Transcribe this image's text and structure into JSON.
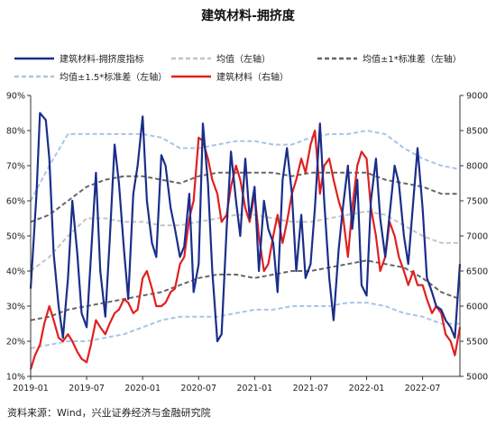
{
  "chart_data": {
    "type": "line",
    "title": "建筑材料-拥挤度",
    "source": "资料来源：Wind，兴业证券经济与金融研究院",
    "x_axis": {
      "ticks": [
        "2019-01",
        "2019-07",
        "2020-01",
        "2020-07",
        "2021-01",
        "2021-07",
        "2022-01",
        "2022-07"
      ],
      "range": [
        "2019-01",
        "2022-11"
      ]
    },
    "y_left": {
      "ticks": [
        "10%",
        "20%",
        "30%",
        "40%",
        "50%",
        "60%",
        "70%",
        "80%",
        "90%"
      ],
      "range": [
        0.1,
        0.9
      ]
    },
    "y_right": {
      "ticks": [
        "5000",
        "5500",
        "6000",
        "6500",
        "7000",
        "7500",
        "8000",
        "8500",
        "9000"
      ],
      "range": [
        5000,
        9000
      ]
    },
    "grid": false,
    "legend_position": "top",
    "series": [
      {
        "name": "建筑材料-拥挤度指标",
        "axis": "left",
        "color": "#1a2e8a",
        "style": "solid",
        "x": [
          "2019-01",
          "2019-01-20",
          "2019-02",
          "2019-02-20",
          "2019-03",
          "2019-03-15",
          "2019-04",
          "2019-04-15",
          "2019-05",
          "2019-05-15",
          "2019-06",
          "2019-06-15",
          "2019-07",
          "2019-07-15",
          "2019-08",
          "2019-08-15",
          "2019-09",
          "2019-09-15",
          "2019-10",
          "2019-10-15",
          "2019-11",
          "2019-11-15",
          "2019-12",
          "2019-12-15",
          "2020-01",
          "2020-01-15",
          "2020-02",
          "2020-02-15",
          "2020-03",
          "2020-03-15",
          "2020-04",
          "2020-04-15",
          "2020-05",
          "2020-05-15",
          "2020-06",
          "2020-06-15",
          "2020-07",
          "2020-07-15",
          "2020-08",
          "2020-08-15",
          "2020-09",
          "2020-09-15",
          "2020-10",
          "2020-10-15",
          "2020-11",
          "2020-11-15",
          "2020-12",
          "2020-12-15",
          "2021-01",
          "2021-01-15",
          "2021-02",
          "2021-02-15",
          "2021-03",
          "2021-03-15",
          "2021-04",
          "2021-04-15",
          "2021-05",
          "2021-05-15",
          "2021-06",
          "2021-06-15",
          "2021-07",
          "2021-07-15",
          "2021-08",
          "2021-08-15",
          "2021-09",
          "2021-09-15",
          "2021-10",
          "2021-10-15",
          "2021-11",
          "2021-11-15",
          "2021-12",
          "2021-12-15",
          "2022-01",
          "2022-01-15",
          "2022-02",
          "2022-02-15",
          "2022-03",
          "2022-03-15",
          "2022-04",
          "2022-04-15",
          "2022-05",
          "2022-05-15",
          "2022-06",
          "2022-06-15",
          "2022-07",
          "2022-07-15",
          "2022-08",
          "2022-08-15",
          "2022-09",
          "2022-09-15",
          "2022-10",
          "2022-10-15",
          "2022-11"
        ],
        "values": [
          0.35,
          0.62,
          0.85,
          0.83,
          0.72,
          0.45,
          0.3,
          0.21,
          0.38,
          0.6,
          0.45,
          0.28,
          0.24,
          0.44,
          0.68,
          0.4,
          0.27,
          0.48,
          0.76,
          0.65,
          0.46,
          0.32,
          0.62,
          0.7,
          0.84,
          0.6,
          0.48,
          0.44,
          0.73,
          0.7,
          0.58,
          0.52,
          0.44,
          0.47,
          0.62,
          0.34,
          0.42,
          0.82,
          0.65,
          0.4,
          0.2,
          0.22,
          0.52,
          0.74,
          0.6,
          0.5,
          0.72,
          0.55,
          0.64,
          0.4,
          0.6,
          0.52,
          0.48,
          0.34,
          0.66,
          0.75,
          0.62,
          0.4,
          0.56,
          0.38,
          0.42,
          0.58,
          0.82,
          0.6,
          0.38,
          0.26,
          0.46,
          0.58,
          0.7,
          0.52,
          0.66,
          0.36,
          0.33,
          0.6,
          0.72,
          0.55,
          0.44,
          0.56,
          0.7,
          0.65,
          0.5,
          0.42,
          0.6,
          0.75,
          0.58,
          0.38,
          0.34,
          0.3,
          0.29,
          0.26,
          0.24,
          0.21,
          0.42
        ]
      },
      {
        "name": "均值（左轴）",
        "axis": "left",
        "color": "#c4c4c4",
        "style": "dashed",
        "x": [
          "2019-01",
          "2019-03",
          "2019-05",
          "2019-07",
          "2019-09",
          "2019-11",
          "2020-01",
          "2020-03",
          "2020-05",
          "2020-07",
          "2020-09",
          "2020-11",
          "2021-01",
          "2021-03",
          "2021-05",
          "2021-07",
          "2021-09",
          "2021-11",
          "2022-01",
          "2022-03",
          "2022-05",
          "2022-07",
          "2022-09",
          "2022-11"
        ],
        "values": [
          0.4,
          0.44,
          0.5,
          0.55,
          0.55,
          0.54,
          0.54,
          0.53,
          0.53,
          0.54,
          0.55,
          0.56,
          0.56,
          0.55,
          0.54,
          0.54,
          0.55,
          0.56,
          0.57,
          0.56,
          0.53,
          0.5,
          0.48,
          0.48
        ]
      },
      {
        "name": "均值±1*标准差（左轴）",
        "axis": "left",
        "color": "#666666",
        "style": "dashed",
        "x": [
          "2019-01",
          "2019-03",
          "2019-05",
          "2019-07",
          "2019-09",
          "2019-11",
          "2020-01",
          "2020-03",
          "2020-05",
          "2020-07",
          "2020-09",
          "2020-11",
          "2021-01",
          "2021-03",
          "2021-05",
          "2021-07",
          "2021-09",
          "2021-11",
          "2022-01",
          "2022-03",
          "2022-05",
          "2022-07",
          "2022-09",
          "2022-11"
        ],
        "values": [
          0.54,
          0.56,
          0.6,
          0.64,
          0.66,
          0.67,
          0.67,
          0.66,
          0.65,
          0.67,
          0.68,
          0.68,
          0.68,
          0.68,
          0.67,
          0.68,
          0.68,
          0.68,
          0.68,
          0.66,
          0.65,
          0.64,
          0.62,
          0.62
        ],
        "values_lower": [
          0.26,
          0.27,
          0.29,
          0.3,
          0.31,
          0.32,
          0.33,
          0.34,
          0.36,
          0.38,
          0.39,
          0.39,
          0.38,
          0.39,
          0.4,
          0.4,
          0.41,
          0.42,
          0.43,
          0.42,
          0.41,
          0.38,
          0.34,
          0.32
        ]
      },
      {
        "name": "均值±1.5*标准差（左轴）",
        "axis": "left",
        "color": "#a8c4e8",
        "style": "dashed",
        "x": [
          "2019-01",
          "2019-03",
          "2019-05",
          "2019-07",
          "2019-09",
          "2019-11",
          "2020-01",
          "2020-03",
          "2020-05",
          "2020-07",
          "2020-09",
          "2020-11",
          "2021-01",
          "2021-03",
          "2021-05",
          "2021-07",
          "2021-09",
          "2021-11",
          "2022-01",
          "2022-03",
          "2022-05",
          "2022-07",
          "2022-09",
          "2022-11"
        ],
        "values": [
          0.6,
          0.7,
          0.79,
          0.79,
          0.79,
          0.79,
          0.79,
          0.78,
          0.75,
          0.75,
          0.76,
          0.77,
          0.77,
          0.76,
          0.76,
          0.78,
          0.79,
          0.79,
          0.8,
          0.79,
          0.75,
          0.72,
          0.7,
          0.69
        ],
        "values_lower": [
          0.18,
          0.19,
          0.2,
          0.2,
          0.21,
          0.22,
          0.24,
          0.26,
          0.27,
          0.27,
          0.27,
          0.28,
          0.29,
          0.29,
          0.3,
          0.3,
          0.3,
          0.31,
          0.31,
          0.3,
          0.28,
          0.27,
          0.25,
          0.25
        ]
      },
      {
        "name": "建筑材料（右轴）",
        "axis": "right",
        "color": "#e02020",
        "style": "solid",
        "x": [
          "2019-01",
          "2019-01-15",
          "2019-02",
          "2019-02-15",
          "2019-03",
          "2019-03-15",
          "2019-04",
          "2019-04-15",
          "2019-05",
          "2019-05-15",
          "2019-06",
          "2019-06-15",
          "2019-07",
          "2019-07-15",
          "2019-08",
          "2019-08-15",
          "2019-09",
          "2019-09-15",
          "2019-10",
          "2019-10-15",
          "2019-11",
          "2019-11-15",
          "2019-12",
          "2019-12-15",
          "2020-01",
          "2020-01-15",
          "2020-02",
          "2020-02-15",
          "2020-03",
          "2020-03-15",
          "2020-04",
          "2020-04-15",
          "2020-05",
          "2020-05-15",
          "2020-06",
          "2020-06-15",
          "2020-07",
          "2020-07-15",
          "2020-08",
          "2020-08-15",
          "2020-09",
          "2020-09-15",
          "2020-10",
          "2020-10-15",
          "2020-11",
          "2020-11-15",
          "2020-12",
          "2020-12-15",
          "2021-01",
          "2021-01-15",
          "2021-02",
          "2021-02-15",
          "2021-03",
          "2021-03-15",
          "2021-04",
          "2021-04-15",
          "2021-05",
          "2021-05-15",
          "2021-06",
          "2021-06-15",
          "2021-07",
          "2021-07-15",
          "2021-08",
          "2021-08-15",
          "2021-09",
          "2021-09-15",
          "2021-10",
          "2021-10-15",
          "2021-11",
          "2021-11-15",
          "2021-12",
          "2021-12-15",
          "2022-01",
          "2022-01-15",
          "2022-02",
          "2022-02-15",
          "2022-03",
          "2022-03-15",
          "2022-04",
          "2022-04-15",
          "2022-05",
          "2022-05-15",
          "2022-06",
          "2022-06-15",
          "2022-07",
          "2022-07-15",
          "2022-08",
          "2022-08-15",
          "2022-09",
          "2022-09-15",
          "2022-10",
          "2022-10-15",
          "2022-11"
        ],
        "values": [
          5100,
          5300,
          5450,
          5750,
          6000,
          5800,
          5550,
          5500,
          5600,
          5500,
          5350,
          5250,
          5200,
          5450,
          5800,
          5700,
          5600,
          5750,
          5900,
          5950,
          6100,
          6050,
          5900,
          5950,
          6400,
          6500,
          6250,
          6000,
          6000,
          6050,
          6200,
          6250,
          6600,
          6700,
          7250,
          7500,
          8400,
          8350,
          8100,
          7800,
          7600,
          7200,
          7300,
          7700,
          8000,
          7800,
          7400,
          7200,
          7600,
          7000,
          6500,
          6600,
          7000,
          7300,
          6900,
          7200,
          7600,
          7800,
          8100,
          7900,
          8300,
          8500,
          7600,
          8000,
          8100,
          7800,
          7500,
          7300,
          6700,
          7400,
          8000,
          8200,
          8100,
          7400,
          7000,
          6500,
          6700,
          7200,
          7000,
          6700,
          6500,
          6300,
          6500,
          6300,
          6300,
          6100,
          5900,
          6000,
          5900,
          5600,
          5500,
          5300,
          5700
        ]
      }
    ]
  }
}
